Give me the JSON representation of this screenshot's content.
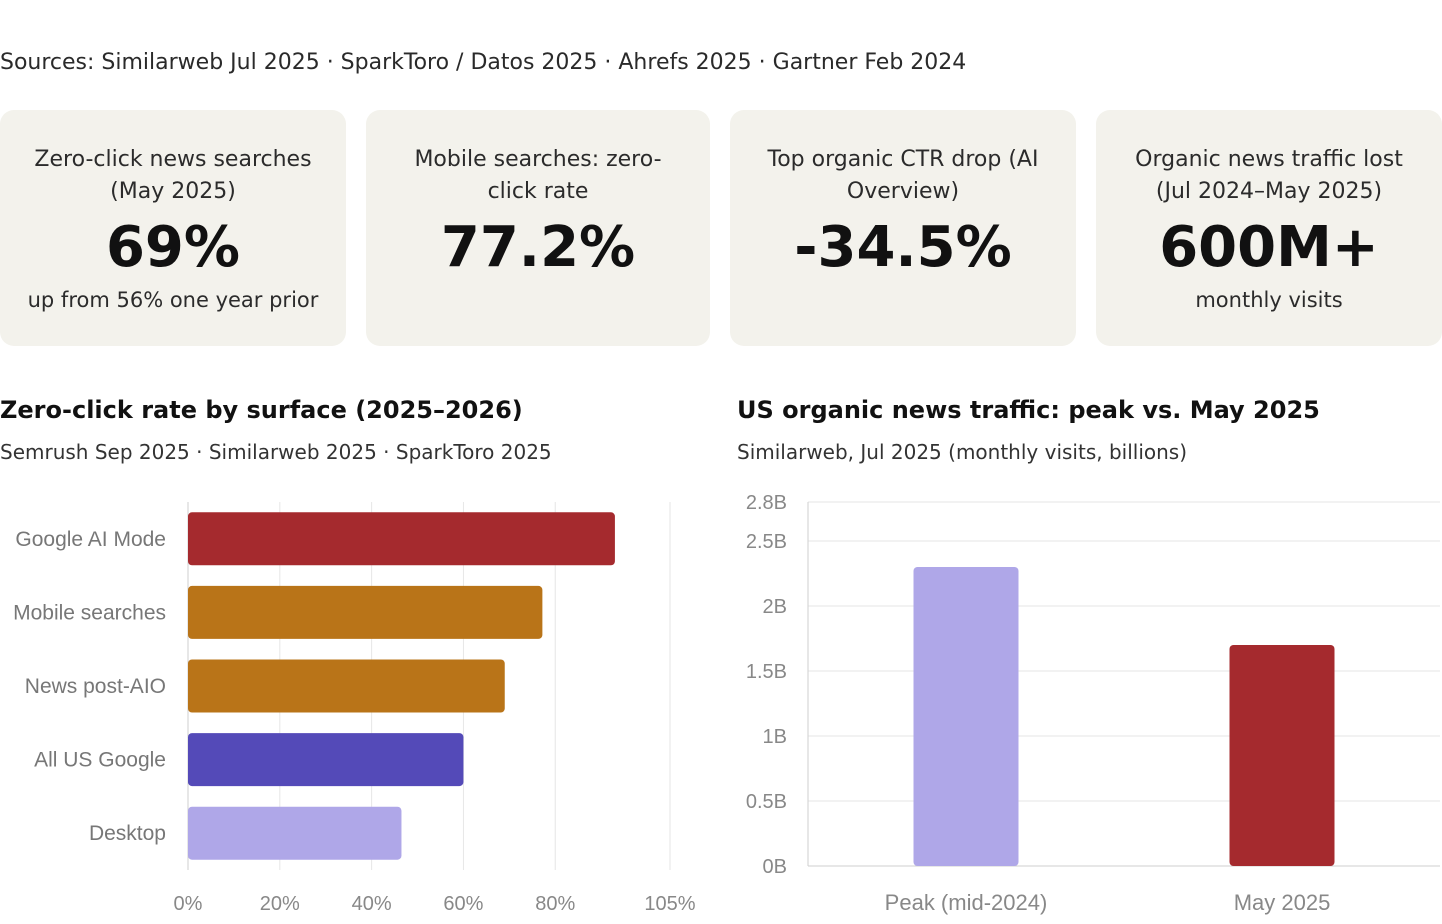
{
  "sources": "Sources: Similarweb Jul 2025 · SparkToro / Datos 2025 · Ahrefs 2025 · Gartner Feb 2024",
  "cards": [
    {
      "title": "Zero-click news searches (May 2025)",
      "value": "69%",
      "sub": "up from 56% one year prior"
    },
    {
      "title": "Mobile searches: zero-click rate",
      "value": "77.2%",
      "sub": ""
    },
    {
      "title": "Top organic CTR drop (AI Overview)",
      "value": "-34.5%",
      "sub": ""
    },
    {
      "title": "Organic news traffic lost (Jul 2024–May 2025)",
      "value": "600M+",
      "sub": "monthly visits"
    }
  ],
  "charts": {
    "left": {
      "title": "Zero-click rate by surface (2025–2026)",
      "subtitle": "Semrush Sep 2025 · Similarweb 2025 · SparkToro 2025"
    },
    "right": {
      "title": "US organic news traffic: peak vs. May 2025",
      "subtitle": "Similarweb, Jul 2025 (monthly visits, billions)"
    }
  },
  "chart_data": [
    {
      "type": "bar",
      "orientation": "horizontal",
      "categories": [
        "Google AI Mode",
        "Mobile searches",
        "News post-AIO",
        "All US Google",
        "Desktop"
      ],
      "values": [
        93,
        77.2,
        69,
        60,
        46.5
      ],
      "colors": [
        "#a52a2e",
        "#b97418",
        "#b97418",
        "#544ab8",
        "#afa7e8"
      ],
      "xticks": [
        "0%",
        "20%",
        "40%",
        "60%",
        "80%",
        "105%"
      ],
      "xtick_values": [
        0,
        20,
        40,
        60,
        80,
        105
      ],
      "xlim": [
        0,
        105
      ],
      "grid": true
    },
    {
      "type": "bar",
      "orientation": "vertical",
      "categories": [
        "Peak (mid-2024)",
        "May 2025"
      ],
      "values": [
        2.3,
        1.7
      ],
      "colors": [
        "#afa7e8",
        "#a52a2e"
      ],
      "yticks": [
        "0B",
        "0.5B",
        "1B",
        "1.5B",
        "2B",
        "2.5B",
        "2.8B"
      ],
      "ytick_values": [
        0,
        0.5,
        1,
        1.5,
        2,
        2.5,
        2.8
      ],
      "ylim": [
        0,
        2.8
      ],
      "grid": true
    }
  ]
}
